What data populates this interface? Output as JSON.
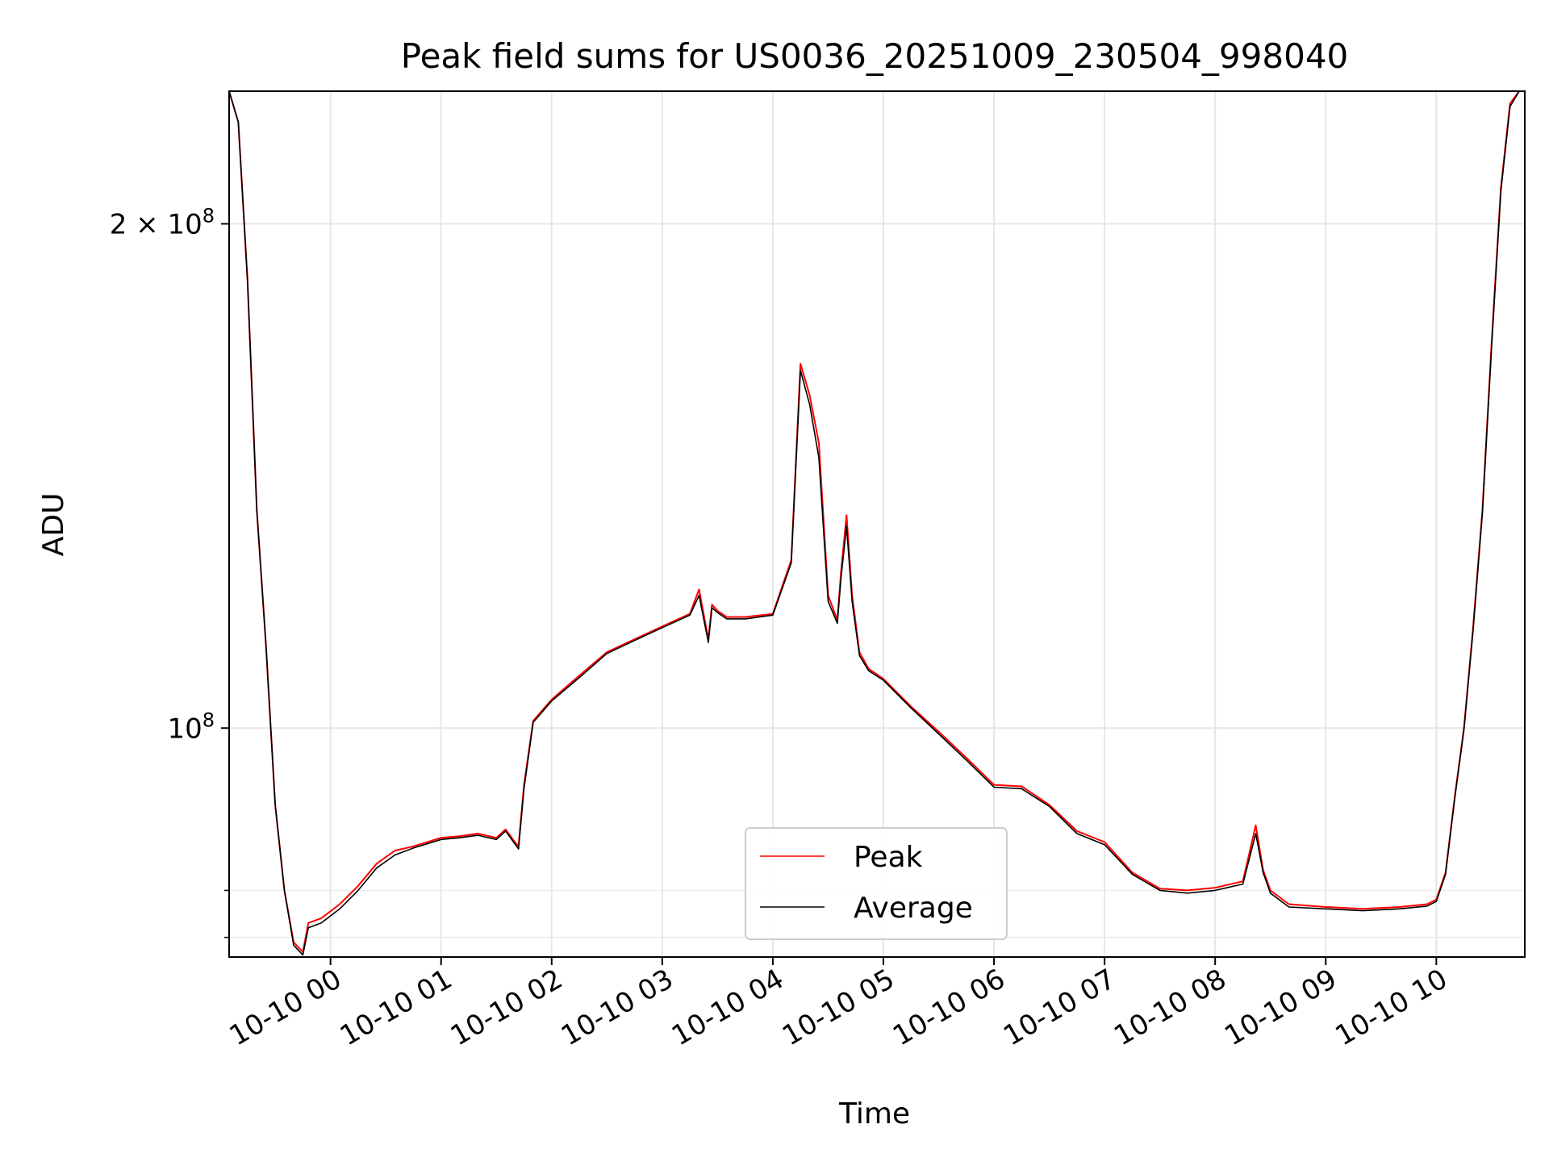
{
  "chart_data": {
    "type": "line",
    "title": "Peak field sums for US0036_20251009_230504_998040",
    "xlabel": "Time",
    "ylabel": "ADU",
    "yscale": "log",
    "grid": true,
    "legend_position": "bottom-center",
    "xlim": [
      "2025-10-09 23:05",
      "2025-10-10 10:48"
    ],
    "ylim": [
      73000000,
      240000000
    ],
    "x_tick_labels": [
      "10-10 00",
      "10-10 01",
      "10-10 02",
      "10-10 03",
      "10-10 04",
      "10-10 05",
      "10-10 06",
      "10-10 07",
      "10-10 08",
      "10-10 09",
      "10-10 10"
    ],
    "x_ticks": [
      "2025-10-10 00:00",
      "2025-10-10 01:00",
      "2025-10-10 02:00",
      "2025-10-10 03:00",
      "2025-10-10 04:00",
      "2025-10-10 05:00",
      "2025-10-10 06:00",
      "2025-10-10 07:00",
      "2025-10-10 08:00",
      "2025-10-10 09:00",
      "2025-10-10 10:00"
    ],
    "y_major_ticks": [
      {
        "value": 100000000,
        "base": "10",
        "exp": "8"
      },
      {
        "value": 200000000,
        "base": "2 × 10",
        "exp": "8"
      }
    ],
    "y_minor_ticks": [
      75000000,
      80000000
    ],
    "x": [
      "2025-10-09 23:05",
      "2025-10-09 23:10",
      "2025-10-09 23:15",
      "2025-10-09 23:20",
      "2025-10-09 23:25",
      "2025-10-09 23:30",
      "2025-10-09 23:35",
      "2025-10-09 23:40",
      "2025-10-09 23:45",
      "2025-10-09 23:48",
      "2025-10-09 23:55",
      "2025-10-10 00:05",
      "2025-10-10 00:15",
      "2025-10-10 00:25",
      "2025-10-10 00:35",
      "2025-10-10 00:45",
      "2025-10-10 01:00",
      "2025-10-10 01:10",
      "2025-10-10 01:20",
      "2025-10-10 01:30",
      "2025-10-10 01:35",
      "2025-10-10 01:40",
      "2025-10-10 01:42",
      "2025-10-10 01:45",
      "2025-10-10 01:50",
      "2025-10-10 02:00",
      "2025-10-10 02:15",
      "2025-10-10 02:30",
      "2025-10-10 02:45",
      "2025-10-10 03:00",
      "2025-10-10 03:15",
      "2025-10-10 03:20",
      "2025-10-10 03:25",
      "2025-10-10 03:27",
      "2025-10-10 03:30",
      "2025-10-10 03:35",
      "2025-10-10 03:45",
      "2025-10-10 04:00",
      "2025-10-10 04:10",
      "2025-10-10 04:15",
      "2025-10-10 04:20",
      "2025-10-10 04:25",
      "2025-10-10 04:30",
      "2025-10-10 04:35",
      "2025-10-10 04:37",
      "2025-10-10 04:40",
      "2025-10-10 04:43",
      "2025-10-10 04:47",
      "2025-10-10 04:52",
      "2025-10-10 05:00",
      "2025-10-10 05:15",
      "2025-10-10 05:30",
      "2025-10-10 05:45",
      "2025-10-10 06:00",
      "2025-10-10 06:15",
      "2025-10-10 06:30",
      "2025-10-10 06:45",
      "2025-10-10 07:00",
      "2025-10-10 07:15",
      "2025-10-10 07:30",
      "2025-10-10 07:45",
      "2025-10-10 08:00",
      "2025-10-10 08:15",
      "2025-10-10 08:22",
      "2025-10-10 08:26",
      "2025-10-10 08:30",
      "2025-10-10 08:40",
      "2025-10-10 09:00",
      "2025-10-10 09:20",
      "2025-10-10 09:40",
      "2025-10-10 09:55",
      "2025-10-10 10:00",
      "2025-10-10 10:05",
      "2025-10-10 10:10",
      "2025-10-10 10:15",
      "2025-10-10 10:20",
      "2025-10-10 10:25",
      "2025-10-10 10:30",
      "2025-10-10 10:35",
      "2025-10-10 10:40",
      "2025-10-10 10:45"
    ],
    "series": [
      {
        "name": "Peak",
        "color": "#ff0000",
        "values": [
          240000000,
          230000000,
          185000000,
          135000000,
          112000000,
          90000000,
          80000000,
          74500000,
          73500000,
          76500000,
          77000000,
          78500000,
          80500000,
          83000000,
          84500000,
          85000000,
          86000000,
          86200000,
          86500000,
          86000000,
          87000000,
          85500000,
          85000000,
          92500000,
          101000000,
          104000000,
          107500000,
          111000000,
          113000000,
          115000000,
          117000000,
          121000000,
          113000000,
          118500000,
          117500000,
          116500000,
          116500000,
          117000000,
          126000000,
          165000000,
          158000000,
          148000000,
          120000000,
          116000000,
          124000000,
          134000000,
          120000000,
          111000000,
          108500000,
          107000000,
          103000000,
          99500000,
          96000000,
          92500000,
          92300000,
          90000000,
          86800000,
          85500000,
          82000000,
          80200000,
          80000000,
          80300000,
          81000000,
          87500000,
          82300000,
          80000000,
          78500000,
          78200000,
          78000000,
          78200000,
          78500000,
          79000000,
          82000000,
          91000000,
          100000000,
          115000000,
          135000000,
          170000000,
          210000000,
          236000000,
          240000000
        ]
      },
      {
        "name": "Average",
        "color": "#000000",
        "values": [
          240000000,
          230000000,
          185000000,
          135000000,
          112000000,
          90000000,
          80000000,
          74200000,
          73200000,
          76000000,
          76500000,
          78000000,
          80000000,
          82500000,
          84000000,
          84800000,
          85800000,
          86000000,
          86300000,
          85800000,
          86800000,
          85300000,
          84700000,
          92000000,
          100800000,
          103800000,
          107200000,
          110800000,
          112800000,
          114800000,
          116800000,
          120000000,
          112500000,
          118000000,
          117200000,
          116200000,
          116200000,
          116800000,
          125500000,
          163500000,
          156000000,
          145000000,
          119000000,
          115500000,
          123000000,
          132000000,
          119000000,
          110500000,
          108200000,
          106800000,
          102800000,
          99200000,
          95700000,
          92200000,
          92000000,
          89800000,
          86500000,
          85200000,
          81800000,
          80000000,
          79700000,
          80000000,
          80700000,
          86500000,
          82000000,
          79700000,
          78200000,
          78000000,
          77800000,
          78000000,
          78300000,
          78800000,
          81800000,
          90800000,
          99800000,
          114500000,
          134500000,
          169000000,
          209000000,
          235000000,
          240000000
        ]
      }
    ]
  }
}
